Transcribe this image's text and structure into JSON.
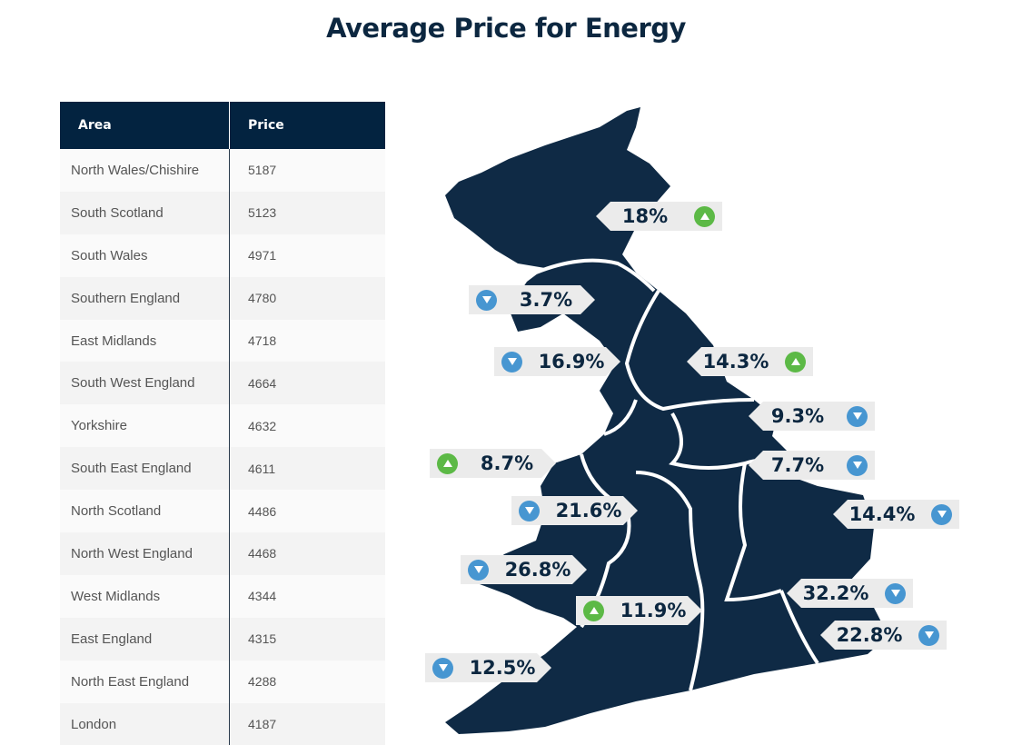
{
  "title": "Average Price for Energy",
  "table": {
    "headers": [
      "Area",
      "Price"
    ],
    "rows": [
      [
        "North Wales/Chishire",
        "5187"
      ],
      [
        "South Scotland",
        "5123"
      ],
      [
        "South Wales",
        "4971"
      ],
      [
        "Southern England",
        "4780"
      ],
      [
        "East Midlands",
        "4718"
      ],
      [
        "South West England",
        "4664"
      ],
      [
        "Yorkshire",
        "4632"
      ],
      [
        "South East England",
        "4611"
      ],
      [
        "North Scotland",
        "4486"
      ],
      [
        "North West England",
        "4468"
      ],
      [
        "West Midlands",
        "4344"
      ],
      [
        "East England",
        "4315"
      ],
      [
        "North East England",
        "4288"
      ],
      [
        "London",
        "4187"
      ]
    ]
  },
  "chart_data": {
    "type": "table",
    "title": "Average Price for Energy",
    "columns": [
      "Area",
      "Price"
    ],
    "categories": [
      "North Wales/Chishire",
      "South Scotland",
      "South Wales",
      "Southern England",
      "East Midlands",
      "South West England",
      "Yorkshire",
      "South East England",
      "North Scotland",
      "North West England",
      "West Midlands",
      "East England",
      "North East England",
      "London"
    ],
    "values": [
      5187,
      5123,
      4971,
      4780,
      4718,
      4664,
      4632,
      4611,
      4486,
      4468,
      4344,
      4315,
      4288,
      4187
    ],
    "map_changes": [
      {
        "label": "18%",
        "direction": "up"
      },
      {
        "label": "3.7%",
        "direction": "down"
      },
      {
        "label": "16.9%",
        "direction": "down"
      },
      {
        "label": "14.3%",
        "direction": "up"
      },
      {
        "label": "9.3%",
        "direction": "down"
      },
      {
        "label": "8.7%",
        "direction": "up"
      },
      {
        "label": "7.7%",
        "direction": "down"
      },
      {
        "label": "21.6%",
        "direction": "down"
      },
      {
        "label": "14.4%",
        "direction": "down"
      },
      {
        "label": "26.8%",
        "direction": "down"
      },
      {
        "label": "32.2%",
        "direction": "down"
      },
      {
        "label": "11.9%",
        "direction": "up"
      },
      {
        "label": "22.8%",
        "direction": "down"
      },
      {
        "label": "12.5%",
        "direction": "down"
      }
    ]
  },
  "colors": {
    "navy": "#032340",
    "map": "#0f2a45",
    "up": "#5cb946",
    "down": "#4796d1"
  }
}
